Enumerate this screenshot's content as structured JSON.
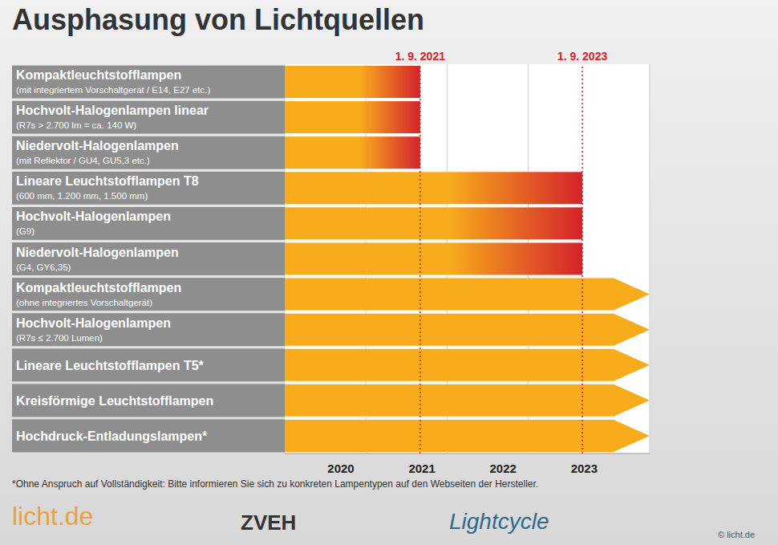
{
  "chart_data": {
    "type": "bar",
    "orientation": "horizontal",
    "title": "Ausphasung von Lichtquellen",
    "categories": [
      "Kompaktleuchtstofflampen",
      "Hochvolt-Halogenlampen linear",
      "Niedervolt-Halogenlampen",
      "Lineare Leuchtstofflampen T8",
      "Hochvolt-Halogenlampen",
      "Niedervolt-Halogenlampen",
      "Kompaktleuchtstofflampen",
      "Hochvolt-Halogenlampen",
      "Lineare Leuchtstofflampen T5*",
      "Kreisförmige Leuchtstofflampen",
      "Hochdruck-Entladungslampen*"
    ],
    "category_notes": [
      "(mit integriertem Vorschaltgerät / E14, E27 etc.)",
      "(R7s > 2.700 lm = ca. 140 W)",
      "(mit Reflektor / GU4, GU5,3 etc.)",
      "(600 mm, 1.200 mm, 1.500 mm)",
      "(G9)",
      "(G4, GY6,35)",
      "(ohne integriertes Vorschaltgerät)",
      "(R7s ≤ 2.700 Lumen)",
      null,
      null,
      null
    ],
    "start": [
      2020,
      2020,
      2020,
      2020,
      2020,
      2020,
      2020,
      2020,
      2020,
      2020,
      2020
    ],
    "end": [
      2021.67,
      2021.67,
      2021.67,
      2023.67,
      2023.67,
      2023.67,
      2024.5,
      2024.5,
      2024.5,
      2024.5,
      2024.5
    ],
    "color": "#f8ac1c",
    "xlim": [
      2020,
      2024.5
    ],
    "xticks": [
      2020,
      2021,
      2022,
      2023
    ],
    "grid": true,
    "annotations": [
      {
        "x": 2021.67,
        "label": "1. 9. 2021"
      },
      {
        "x": 2023.67,
        "label": "1. 9. 2023"
      }
    ],
    "footnote": "*Ohne Anspruch auf Vollständigkeit: Bitte informieren Sie sich zu konkreten Lampentypen auf den Webseiten der Hersteller.",
    "logos": [
      "licht.de",
      "ZVEH",
      "Lightcycle"
    ],
    "copyright": "© licht.de"
  }
}
